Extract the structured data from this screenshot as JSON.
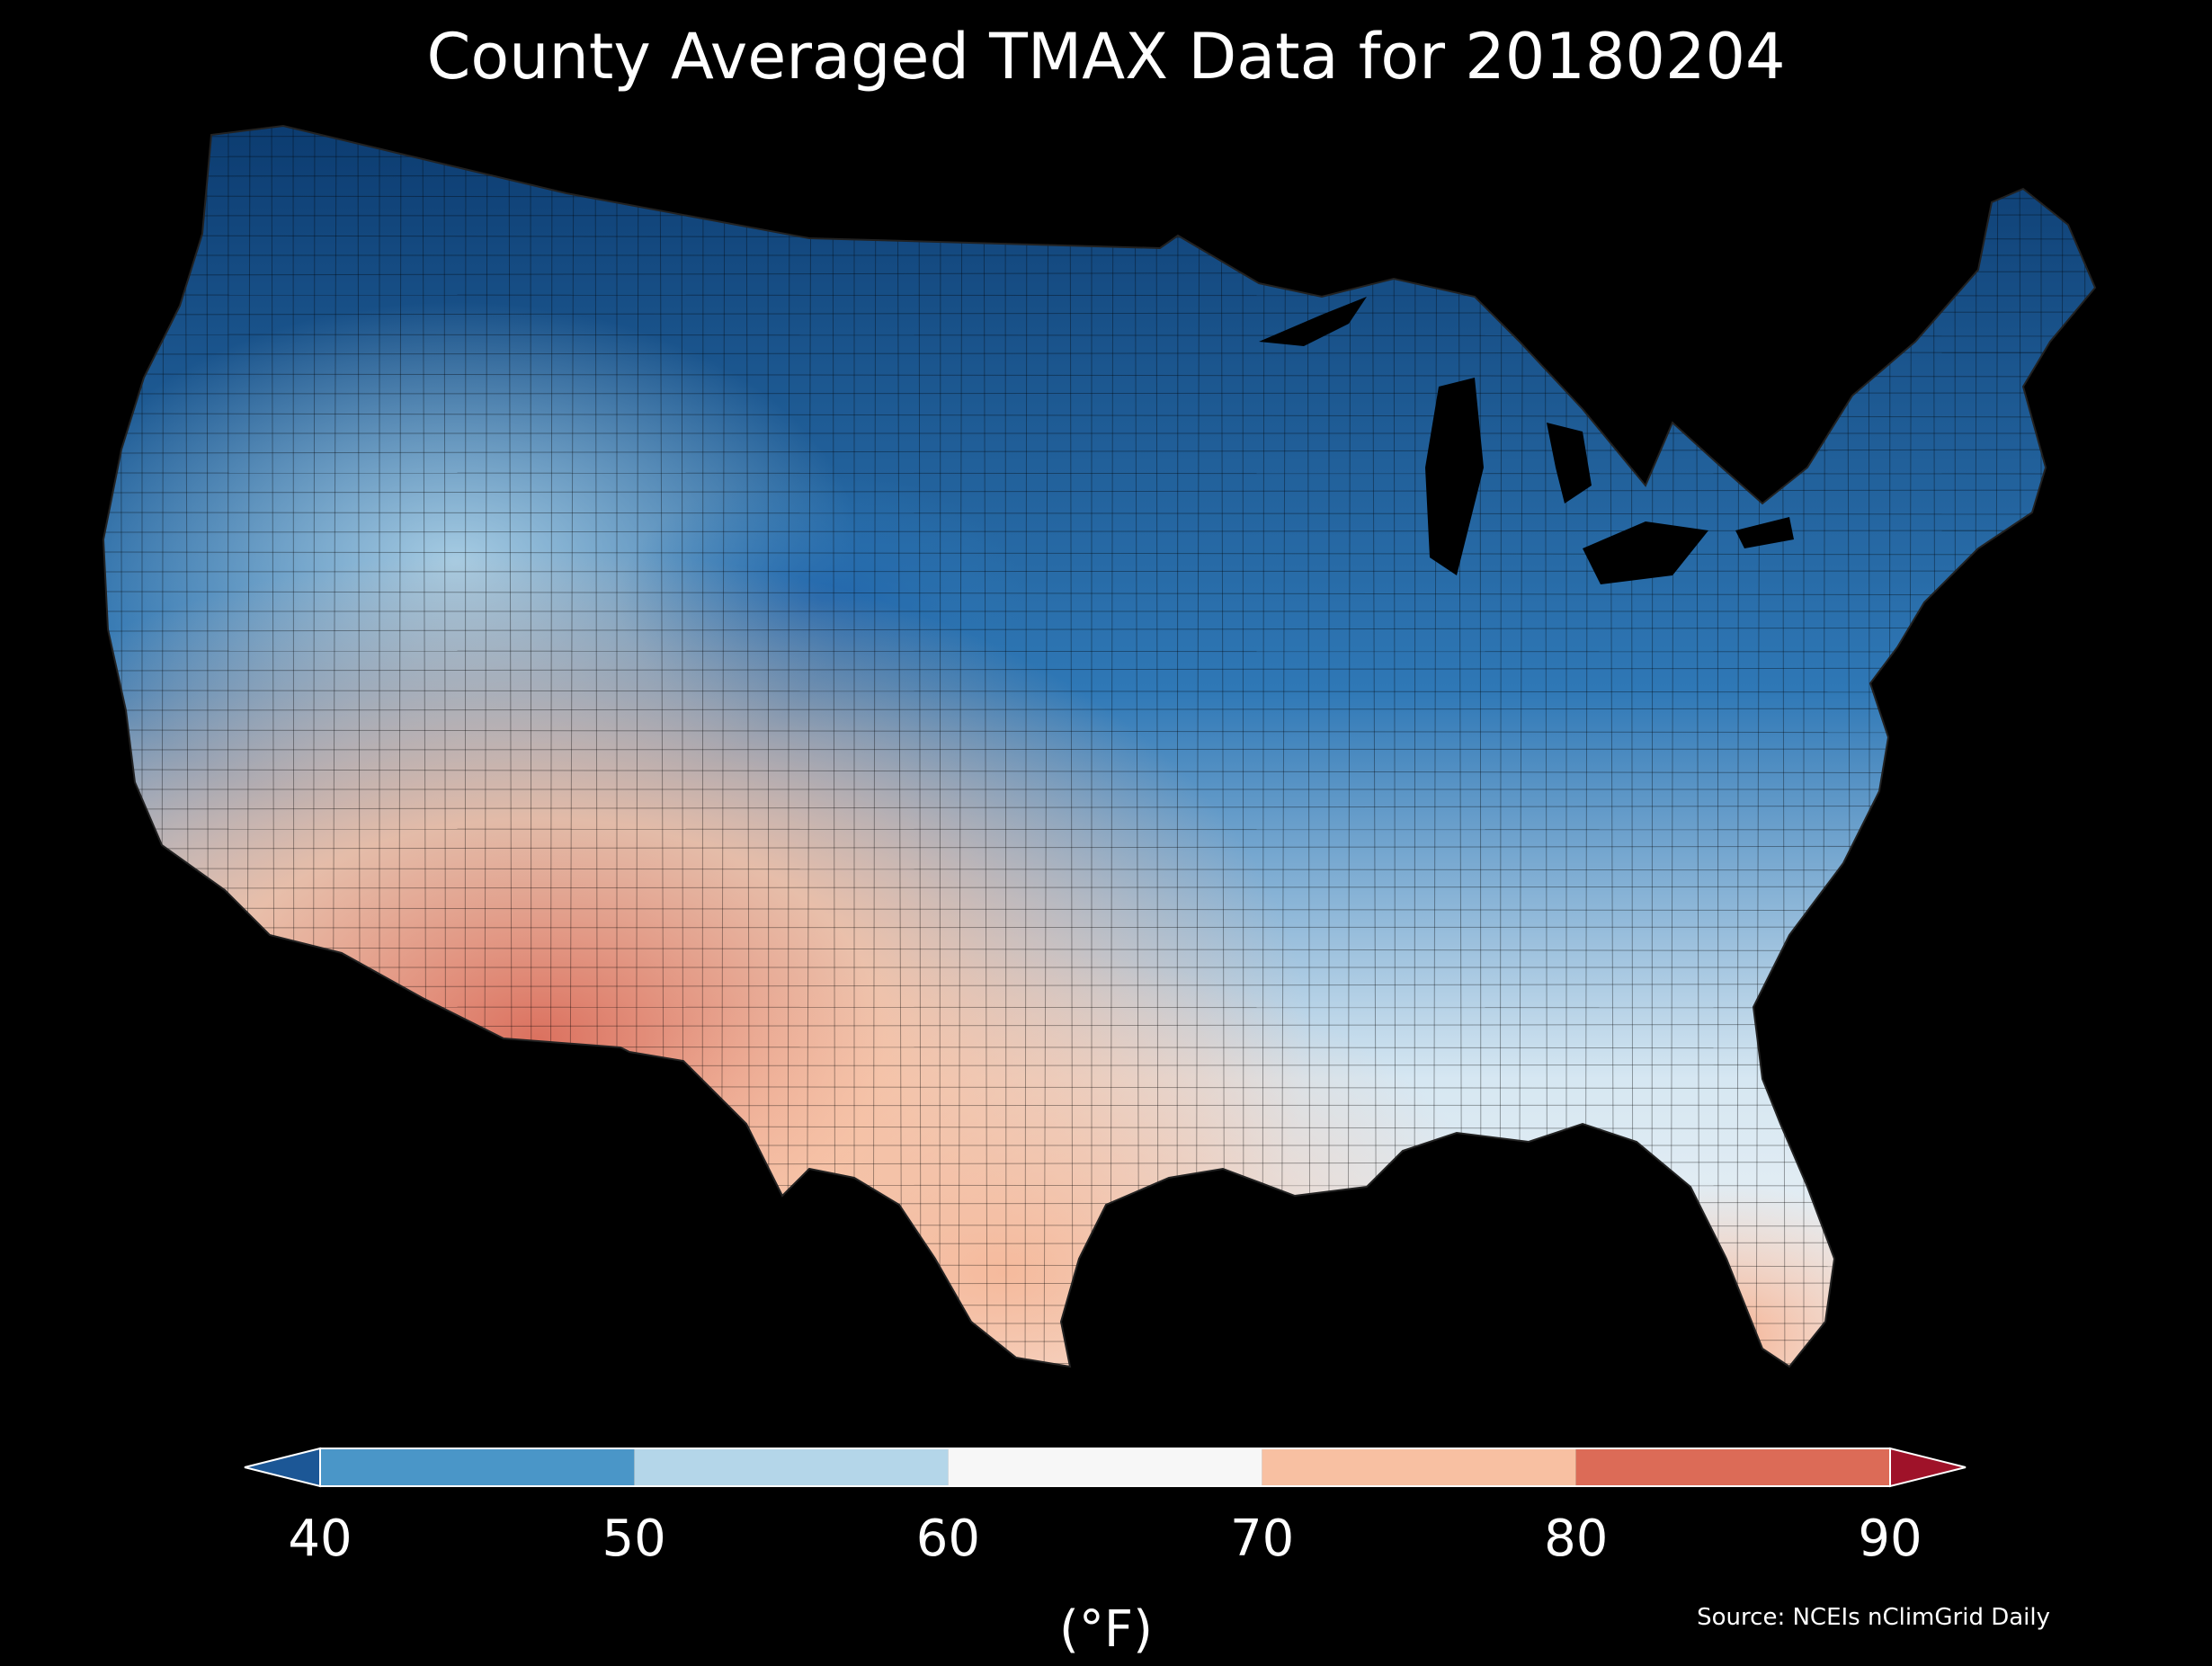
{
  "title": "County Averaged TMAX Data for 20180204",
  "source": "Source: NCEIs nClimGrid Daily",
  "map": {
    "region": "Contiguous United States",
    "variable": "TMAX",
    "background_color": "#000000",
    "county_border_color": "#000000",
    "shape_icon": "contiguous-us-map-icon"
  },
  "colorbar": {
    "unit_label": "(°F)",
    "extend": "both",
    "ticks": [
      "40",
      "50",
      "60",
      "70",
      "80",
      "90"
    ],
    "bins": [
      {
        "range": [
          null,
          40
        ],
        "color": "#1c5796"
      },
      {
        "range": [
          40,
          50
        ],
        "color": "#4a96c8"
      },
      {
        "range": [
          50,
          60
        ],
        "color": "#b4d6e9"
      },
      {
        "range": [
          60,
          70
        ],
        "color": "#f7f7f7"
      },
      {
        "range": [
          70,
          80
        ],
        "color": "#f8c0a2"
      },
      {
        "range": [
          80,
          90
        ],
        "color": "#dc6b57"
      },
      {
        "range": [
          90,
          null
        ],
        "color": "#9f1229"
      }
    ]
  }
}
